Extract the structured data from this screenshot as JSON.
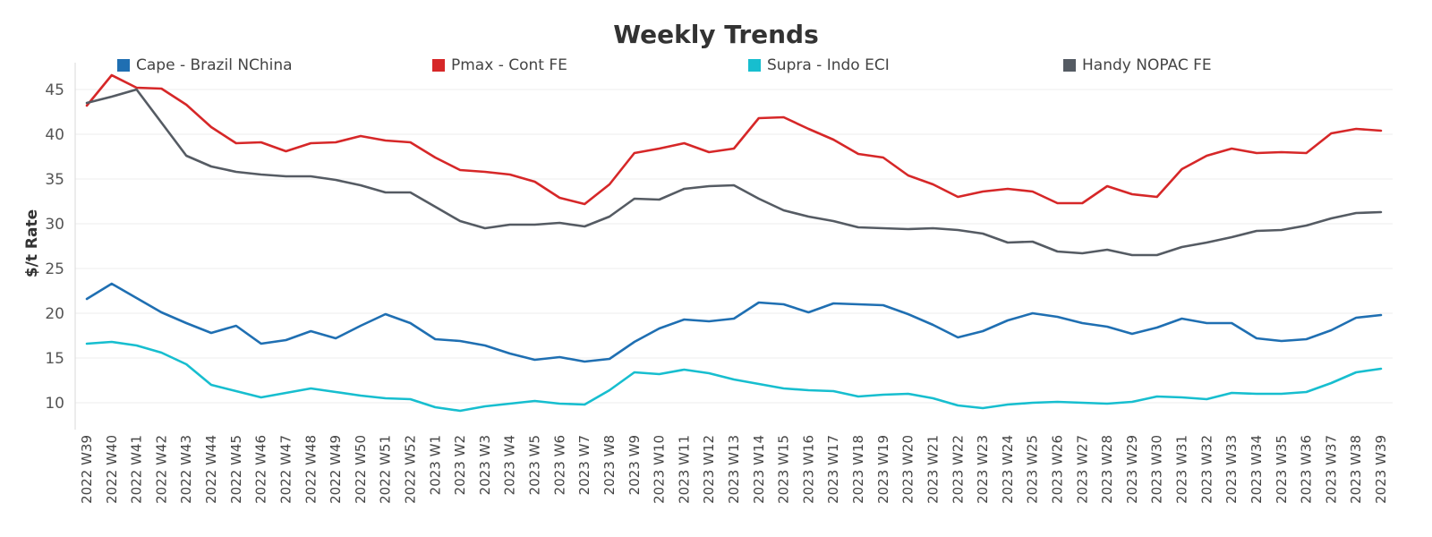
{
  "chart_data": {
    "type": "line",
    "title": "Weekly Trends",
    "xlabel": "",
    "ylabel": "$/t Rate",
    "ylim": [
      7,
      48
    ],
    "yticks": [
      10,
      15,
      20,
      25,
      30,
      35,
      40,
      45
    ],
    "grid": true,
    "legend_position": "top",
    "categories": [
      "2022 W39",
      "2022 W40",
      "2022 W41",
      "2022 W42",
      "2022 W43",
      "2022 W44",
      "2022 W45",
      "2022 W46",
      "2022 W47",
      "2022 W48",
      "2022 W49",
      "2022 W50",
      "2022 W51",
      "2022 W52",
      "2023 W1",
      "2023 W2",
      "2023 W3",
      "2023 W4",
      "2023 W5",
      "2023 W6",
      "2023 W7",
      "2023 W8",
      "2023 W9",
      "2023 W10",
      "2023 W11",
      "2023 W12",
      "2023 W13",
      "2023 W14",
      "2023 W15",
      "2023 W16",
      "2023 W17",
      "2023 W18",
      "2023 W19",
      "2023 W20",
      "2023 W21",
      "2023 W22",
      "2023 W23",
      "2023 W24",
      "2023 W25",
      "2023 W26",
      "2023 W27",
      "2023 W28",
      "2023 W29",
      "2023 W30",
      "2023 W31",
      "2023 W32",
      "2023 W33",
      "2023 W34",
      "2023 W35",
      "2023 W36",
      "2023 W37",
      "2023 W38",
      "2023 W39"
    ],
    "series": [
      {
        "name": "Cape - Brazil NChina",
        "color": "#1f6fb2",
        "values": [
          21.6,
          23.3,
          21.7,
          20.1,
          18.9,
          17.8,
          18.6,
          16.6,
          17.0,
          18.0,
          17.2,
          18.6,
          19.9,
          18.9,
          17.1,
          16.9,
          16.4,
          15.5,
          14.8,
          15.1,
          14.6,
          14.9,
          16.8,
          18.3,
          19.3,
          19.1,
          19.4,
          21.2,
          21.0,
          20.1,
          21.1,
          21.0,
          20.9,
          19.9,
          18.7,
          17.3,
          18.0,
          19.2,
          20.0,
          19.6,
          18.9,
          18.5,
          17.7,
          18.4,
          19.4,
          18.9,
          18.9,
          17.2,
          16.9,
          17.1,
          18.1,
          19.5,
          19.8
        ]
      },
      {
        "name": "Pmax - Cont FE",
        "color": "#d62728",
        "values": [
          43.2,
          46.6,
          45.2,
          45.1,
          43.3,
          40.8,
          39.0,
          39.1,
          38.1,
          39.0,
          39.1,
          39.8,
          39.3,
          39.1,
          37.4,
          36.0,
          35.8,
          35.5,
          34.7,
          32.9,
          32.2,
          34.4,
          37.9,
          38.4,
          39.0,
          38.0,
          38.4,
          41.8,
          41.9,
          40.6,
          39.4,
          37.8,
          37.4,
          35.4,
          34.4,
          33.0,
          33.6,
          33.9,
          33.6,
          32.3,
          32.3,
          34.2,
          33.3,
          33.0,
          36.1,
          37.6,
          38.4,
          37.9,
          38.0,
          37.9,
          40.1,
          40.6,
          40.4
        ]
      },
      {
        "name": "Supra - Indo ECI",
        "color": "#17becf",
        "values": [
          16.6,
          16.8,
          16.4,
          15.6,
          14.3,
          12.0,
          11.3,
          10.6,
          11.1,
          11.6,
          11.2,
          10.8,
          10.5,
          10.4,
          9.5,
          9.1,
          9.6,
          9.9,
          10.2,
          9.9,
          9.8,
          11.4,
          13.4,
          13.2,
          13.7,
          13.3,
          12.6,
          12.1,
          11.6,
          11.4,
          11.3,
          10.7,
          10.9,
          11.0,
          10.5,
          9.7,
          9.4,
          9.8,
          10.0,
          10.1,
          10.0,
          9.9,
          10.1,
          10.7,
          10.6,
          10.4,
          11.1,
          11.0,
          11.0,
          11.2,
          12.2,
          13.4,
          13.8
        ]
      },
      {
        "name": "Handy NOPAC FE",
        "color": "#555b63",
        "values": [
          43.5,
          44.2,
          45.0,
          41.3,
          37.6,
          36.4,
          35.8,
          35.5,
          35.3,
          35.3,
          34.9,
          34.3,
          33.5,
          33.5,
          31.9,
          30.3,
          29.5,
          29.9,
          29.9,
          30.1,
          29.7,
          30.8,
          32.8,
          32.7,
          33.9,
          34.2,
          34.3,
          32.8,
          31.5,
          30.8,
          30.3,
          29.6,
          29.5,
          29.4,
          29.5,
          29.3,
          28.9,
          27.9,
          28.0,
          26.9,
          26.7,
          27.1,
          26.5,
          26.5,
          27.4,
          27.9,
          28.5,
          29.2,
          29.3,
          29.8,
          30.6,
          31.2,
          31.3
        ]
      }
    ]
  }
}
